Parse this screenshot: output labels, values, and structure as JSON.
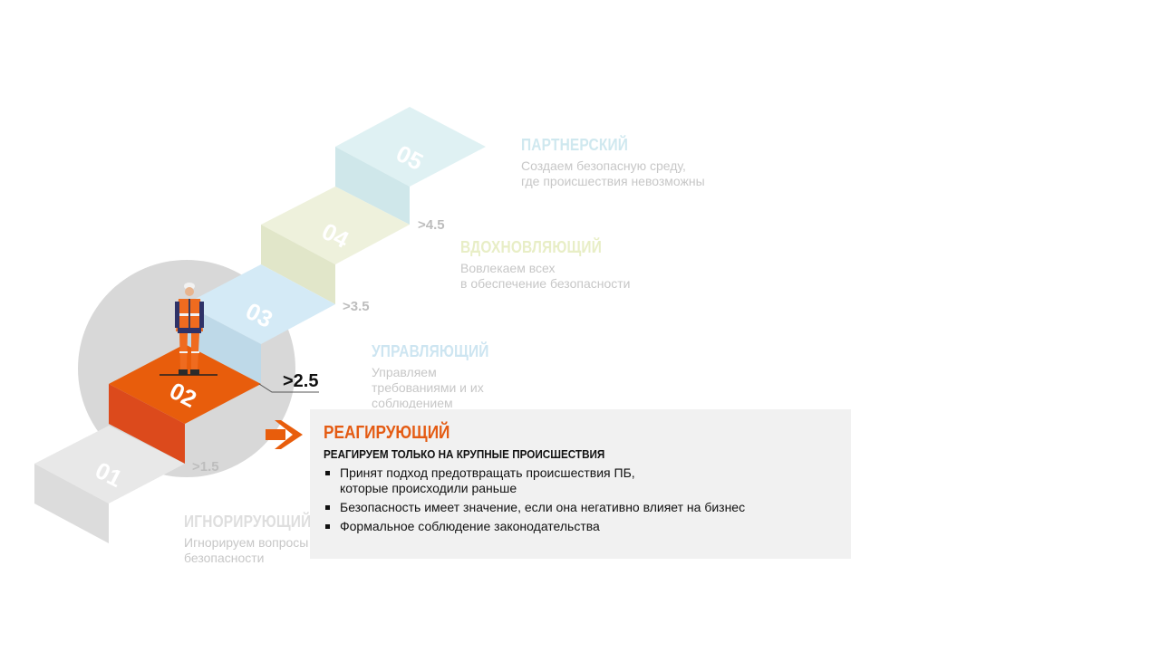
{
  "levels": [
    {
      "number": "01",
      "title": "ИГНОРИРУЮЩИЙ",
      "description": "Игнорируем вопросы\nбезопасности",
      "color": "#e0e0e0",
      "text_color": "#dedede"
    },
    {
      "number": "02",
      "title": "РЕАГИРУЮЩИЙ",
      "threshold": ">1.5",
      "color": "#e45b13",
      "text_color": "#e45b13"
    },
    {
      "number": "03",
      "title": "УПРАВЛЯЮЩИЙ",
      "description": "Управляем\nтребованиями и их\nсоблюдением",
      "threshold": ">2.5",
      "color": "#d2e9f4",
      "text_color": "#cfe6f1"
    },
    {
      "number": "04",
      "title": "ВДОХНОВЛЯЮЩИЙ",
      "description": "Вовлекаем всех\nв обеспечение  безопасности",
      "threshold": ">3.5",
      "color": "#eef1dd",
      "text_color": "#e9efc9"
    },
    {
      "number": "05",
      "title": "ПАРТНЕРСКИЙ",
      "description": "Создаем безопасную  среду,\nгде происшествия  невозможны",
      "threshold": ">4.5",
      "color": "#dcf0f1",
      "text_color": "#d3ecef"
    }
  ],
  "current": {
    "title": "РЕАГИРУЮЩИЙ",
    "subtitle": "РЕАГИРУЕМ ТОЛЬКО НА КРУПНЫЕ ПРОИСШЕСТВИЯ",
    "bullets": [
      "Принят  подход  предотвращать  происшествия  ПБ,\nкоторые  происходили  раньше",
      "Безопасность  имеет  значение,  если  она  негативно  влияет  на  бизнес",
      "Формальное  соблюдение  законодательства"
    ],
    "accent_color": "#e45b13"
  }
}
